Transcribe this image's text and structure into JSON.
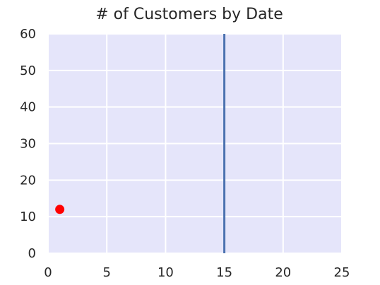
{
  "chart_data": {
    "type": "scatter",
    "title": "# of Customers by Date",
    "xlabel": "",
    "ylabel": "",
    "xlim": [
      0,
      25
    ],
    "ylim": [
      0,
      60
    ],
    "x_ticks": [
      0,
      5,
      10,
      15,
      20,
      25
    ],
    "y_ticks": [
      0,
      10,
      20,
      30,
      40,
      50,
      60
    ],
    "grid": true,
    "colors": {
      "plot_background": "#e5e5fa",
      "grid": "#ffffff",
      "point": "#ff0000",
      "vertical_line": "#4c72b0"
    },
    "points": [
      {
        "x": 1,
        "y": 12
      }
    ],
    "vertical_lines": [
      {
        "x": 15
      }
    ]
  }
}
